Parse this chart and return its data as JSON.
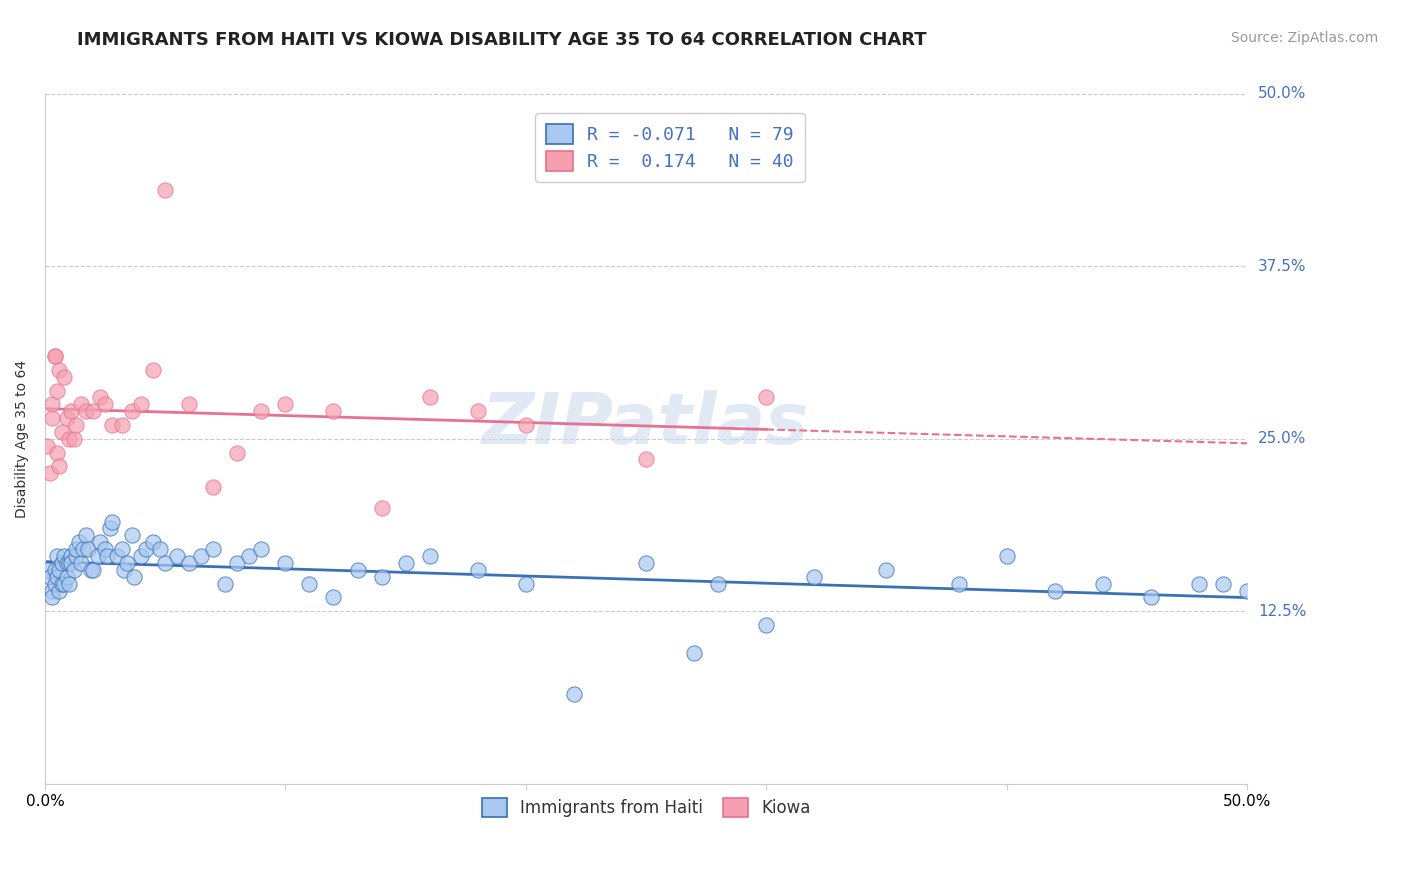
{
  "title": "IMMIGRANTS FROM HAITI VS KIOWA DISABILITY AGE 35 TO 64 CORRELATION CHART",
  "source": "Source: ZipAtlas.com",
  "ylabel": "Disability Age 35 to 64",
  "haiti_color": "#a8c8f0",
  "kiowa_color": "#f4a0b0",
  "haiti_line_color": "#3a70b5",
  "kiowa_line_color": "#e87090",
  "watermark": "ZIPatlas",
  "background_color": "#ffffff",
  "grid_color": "#cccccc",
  "title_fontsize": 13,
  "axis_label_fontsize": 10,
  "tick_fontsize": 11,
  "source_fontsize": 10,
  "haiti_scatter_x": [
    0.001,
    0.002,
    0.003,
    0.003,
    0.004,
    0.004,
    0.005,
    0.005,
    0.006,
    0.006,
    0.007,
    0.007,
    0.008,
    0.008,
    0.009,
    0.009,
    0.01,
    0.01,
    0.011,
    0.011,
    0.012,
    0.013,
    0.013,
    0.014,
    0.015,
    0.016,
    0.017,
    0.018,
    0.019,
    0.02,
    0.022,
    0.023,
    0.025,
    0.026,
    0.027,
    0.028,
    0.03,
    0.032,
    0.033,
    0.034,
    0.036,
    0.037,
    0.04,
    0.042,
    0.045,
    0.048,
    0.05,
    0.055,
    0.06,
    0.065,
    0.07,
    0.075,
    0.08,
    0.085,
    0.09,
    0.1,
    0.11,
    0.12,
    0.13,
    0.14,
    0.15,
    0.16,
    0.18,
    0.2,
    0.22,
    0.25,
    0.28,
    0.32,
    0.35,
    0.38,
    0.4,
    0.42,
    0.44,
    0.46,
    0.48,
    0.49,
    0.5,
    0.3,
    0.27
  ],
  "haiti_scatter_y": [
    0.155,
    0.15,
    0.14,
    0.135,
    0.155,
    0.145,
    0.15,
    0.165,
    0.14,
    0.155,
    0.145,
    0.16,
    0.145,
    0.165,
    0.15,
    0.16,
    0.16,
    0.145,
    0.165,
    0.16,
    0.155,
    0.165,
    0.17,
    0.175,
    0.16,
    0.17,
    0.18,
    0.17,
    0.155,
    0.155,
    0.165,
    0.175,
    0.17,
    0.165,
    0.185,
    0.19,
    0.165,
    0.17,
    0.155,
    0.16,
    0.18,
    0.15,
    0.165,
    0.17,
    0.175,
    0.17,
    0.16,
    0.165,
    0.16,
    0.165,
    0.17,
    0.145,
    0.16,
    0.165,
    0.17,
    0.16,
    0.145,
    0.135,
    0.155,
    0.15,
    0.16,
    0.165,
    0.155,
    0.145,
    0.065,
    0.16,
    0.145,
    0.15,
    0.155,
    0.145,
    0.165,
    0.14,
    0.145,
    0.135,
    0.145,
    0.145,
    0.14,
    0.115,
    0.095
  ],
  "kiowa_scatter_x": [
    0.001,
    0.002,
    0.003,
    0.003,
    0.004,
    0.004,
    0.005,
    0.005,
    0.006,
    0.006,
    0.007,
    0.008,
    0.009,
    0.01,
    0.011,
    0.012,
    0.013,
    0.015,
    0.017,
    0.02,
    0.023,
    0.025,
    0.028,
    0.032,
    0.036,
    0.04,
    0.045,
    0.05,
    0.06,
    0.07,
    0.08,
    0.09,
    0.1,
    0.12,
    0.14,
    0.16,
    0.18,
    0.2,
    0.25,
    0.3
  ],
  "kiowa_scatter_y": [
    0.245,
    0.225,
    0.265,
    0.275,
    0.31,
    0.31,
    0.24,
    0.285,
    0.23,
    0.3,
    0.255,
    0.295,
    0.265,
    0.25,
    0.27,
    0.25,
    0.26,
    0.275,
    0.27,
    0.27,
    0.28,
    0.275,
    0.26,
    0.26,
    0.27,
    0.275,
    0.3,
    0.43,
    0.275,
    0.215,
    0.24,
    0.27,
    0.275,
    0.27,
    0.2,
    0.28,
    0.27,
    0.26,
    0.235,
    0.28
  ],
  "xlim": [
    0.0,
    0.5
  ],
  "ylim": [
    0.0,
    0.5
  ],
  "y_ticks": [
    0.0,
    0.125,
    0.25,
    0.375,
    0.5
  ],
  "y_tick_labels": [
    "",
    "12.5%",
    "25.0%",
    "37.5%",
    "50.0%"
  ],
  "x_ticks": [
    0.0,
    0.1,
    0.2,
    0.3,
    0.4,
    0.5
  ],
  "x_tick_labels": [
    "0.0%",
    "",
    "",
    "",
    "",
    "50.0%"
  ]
}
